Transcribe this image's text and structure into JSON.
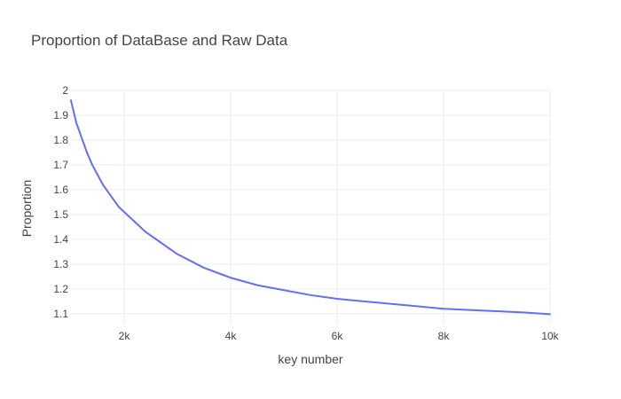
{
  "chart_data": {
    "type": "line",
    "title": "Proportion of DataBase and Raw Data",
    "xlabel": "key number",
    "ylabel": "Proportion",
    "xlim": [
      1000,
      10000
    ],
    "ylim": [
      1.06,
      2.0
    ],
    "x_ticks": [
      {
        "value": 2000,
        "label": "2k"
      },
      {
        "value": 4000,
        "label": "4k"
      },
      {
        "value": 6000,
        "label": "6k"
      },
      {
        "value": 8000,
        "label": "8k"
      },
      {
        "value": 10000,
        "label": "10k"
      }
    ],
    "y_ticks": [
      {
        "value": 1.1,
        "label": "1.1"
      },
      {
        "value": 1.2,
        "label": "1.2"
      },
      {
        "value": 1.3,
        "label": "1.3"
      },
      {
        "value": 1.4,
        "label": "1.4"
      },
      {
        "value": 1.5,
        "label": "1.5"
      },
      {
        "value": 1.6,
        "label": "1.6"
      },
      {
        "value": 1.7,
        "label": "1.7"
      },
      {
        "value": 1.8,
        "label": "1.8"
      },
      {
        "value": 1.9,
        "label": "1.9"
      },
      {
        "value": 2,
        "label": "2"
      }
    ],
    "grid": true,
    "legend": "none",
    "series": [
      {
        "color": "#636efa",
        "x": [
          1000,
          1100,
          1200,
          1300,
          1400,
          1500,
          1600,
          1700,
          1800,
          1900,
          2000,
          2200,
          2400,
          2600,
          2800,
          3000,
          3500,
          4000,
          4500,
          5000,
          5500,
          6000,
          6500,
          7000,
          7500,
          8000,
          8500,
          9000,
          9500,
          10000
        ],
        "y": [
          1.96,
          1.87,
          1.81,
          1.75,
          1.7,
          1.66,
          1.62,
          1.59,
          1.56,
          1.53,
          1.51,
          1.47,
          1.43,
          1.4,
          1.37,
          1.34,
          1.285,
          1.245,
          1.215,
          1.195,
          1.175,
          1.16,
          1.15,
          1.14,
          1.13,
          1.12,
          1.115,
          1.11,
          1.105,
          1.098
        ]
      }
    ]
  }
}
